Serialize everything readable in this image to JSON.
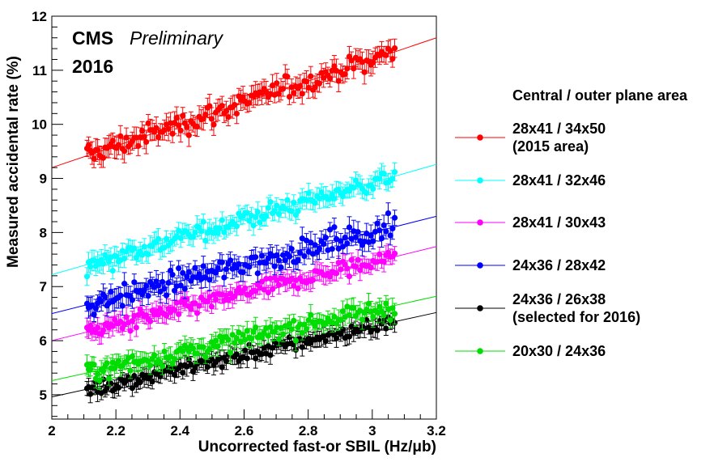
{
  "chart_data": {
    "type": "scatter",
    "xlabel": "Uncorrected fast-or SBIL (Hz/μb)",
    "ylabel": "Measured accidental rate (%)",
    "xlim": [
      2.0,
      3.2
    ],
    "ylim": [
      4.55,
      12.0
    ],
    "x_ticks": [
      "2",
      "2.2",
      "2.4",
      "2.6",
      "2.8",
      "3",
      "3.2"
    ],
    "y_ticks": [
      "5",
      "6",
      "7",
      "8",
      "9",
      "10",
      "11",
      "12"
    ],
    "grid": false,
    "annotation": {
      "experiment": "CMS",
      "status": "Preliminary",
      "year": "2016"
    },
    "legend": {
      "placement": "right",
      "header": "Central / outer plane area"
    },
    "series": [
      {
        "name": "28x41 / 34x50",
        "name_line2": "(2015 area)",
        "color": "#ff0000",
        "fit": {
          "slope": 2.0,
          "intercept": 5.2
        },
        "x_range": [
          2.11,
          3.07
        ],
        "scatter": 0.2,
        "errbar": 0.17
      },
      {
        "name": "28x41 / 32x46",
        "name_line2": "",
        "color": "#00ffff",
        "fit": {
          "slope": 1.7,
          "intercept": 3.82
        },
        "x_range": [
          2.11,
          3.07
        ],
        "scatter": 0.17,
        "errbar": 0.15
      },
      {
        "name": "28x41 / 30x43",
        "name_line2": "",
        "color": "#ff00ff",
        "fit": {
          "slope": 1.45,
          "intercept": 3.1
        },
        "x_range": [
          2.11,
          3.07
        ],
        "scatter": 0.16,
        "errbar": 0.15
      },
      {
        "name": "24x36 / 28x42",
        "name_line2": "",
        "color": "#0000ff",
        "fit": {
          "slope": 1.5,
          "intercept": 3.5
        },
        "x_range": [
          2.11,
          3.07
        ],
        "scatter": 0.2,
        "errbar": 0.16
      },
      {
        "name": "24x36 / 26x38",
        "name_line2": "(selected for 2016)",
        "color": "#000000",
        "fit": {
          "slope": 1.3,
          "intercept": 2.36
        },
        "x_range": [
          2.11,
          3.07
        ],
        "scatter": 0.15,
        "errbar": 0.14
      },
      {
        "name": "20x30 / 24x36",
        "name_line2": "",
        "color": "#00dd00",
        "fit": {
          "slope": 1.3,
          "intercept": 2.66
        },
        "x_range": [
          2.11,
          3.07
        ],
        "scatter": 0.17,
        "errbar": 0.15
      }
    ]
  }
}
